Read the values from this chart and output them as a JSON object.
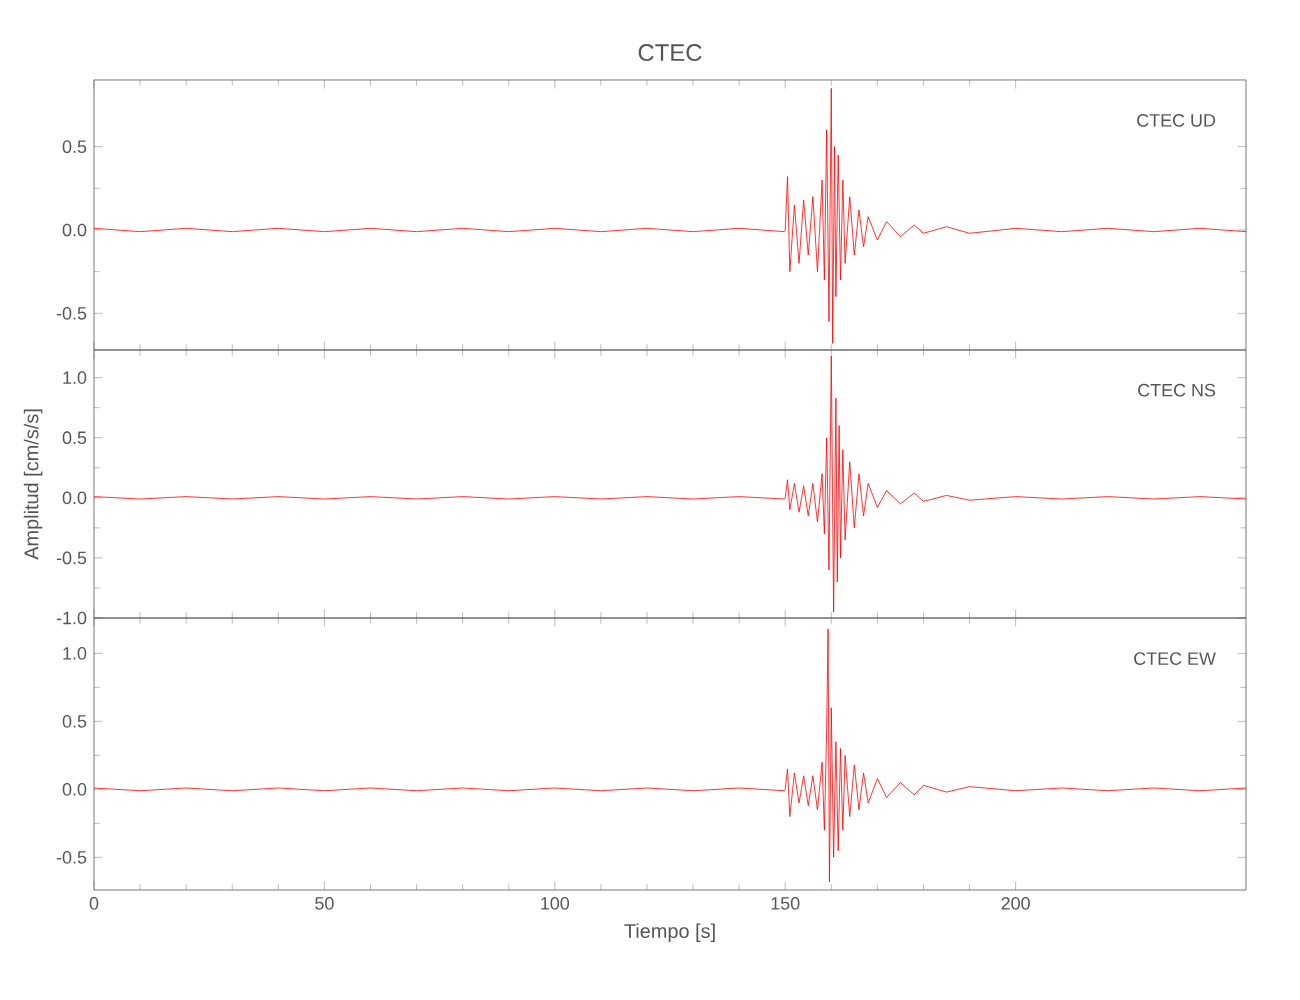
{
  "chart_data": [
    {
      "type": "line",
      "title": "CTEC",
      "annotations": [
        "CTEC   UD"
      ],
      "xlim": [
        0,
        250
      ],
      "xticks": [
        0,
        50,
        100,
        150,
        200
      ],
      "ylim": [
        -0.72,
        0.9
      ],
      "yticks": [
        {
          "value": -0.5,
          "label": "-0.5"
        },
        {
          "value": 0,
          "label": "0.0"
        },
        {
          "value": 0.5,
          "label": "0.5"
        }
      ],
      "tick_labels": "y",
      "series": [
        {
          "color": "#ff0000",
          "x": [
            0,
            10,
            20,
            30,
            40,
            50,
            60,
            70,
            80,
            90,
            100,
            110,
            120,
            130,
            140,
            149.8,
            150,
            150.5,
            151,
            152,
            153,
            154,
            155,
            156,
            157,
            158,
            158.5,
            159,
            159.5,
            160,
            160.3,
            160.7,
            161,
            161.5,
            162,
            162.5,
            163,
            164,
            165,
            166,
            167,
            168,
            170,
            172,
            175,
            178,
            180,
            185,
            190,
            200,
            210,
            220,
            230,
            240,
            250
          ],
          "values": [
            0.01,
            -0.01,
            0.01,
            -0.01,
            0.01,
            -0.01,
            0.01,
            -0.01,
            0.01,
            -0.01,
            0.01,
            -0.01,
            0.01,
            -0.01,
            0.01,
            -0.01,
            0.0,
            0.32,
            -0.25,
            0.15,
            -0.2,
            0.18,
            -0.15,
            0.2,
            -0.25,
            0.3,
            -0.3,
            0.6,
            -0.55,
            0.85,
            -0.68,
            0.5,
            -0.4,
            0.45,
            -0.3,
            0.3,
            -0.2,
            0.2,
            -0.15,
            0.12,
            -0.1,
            0.08,
            -0.06,
            0.05,
            -0.04,
            0.03,
            -0.02,
            0.02,
            -0.02,
            0.01,
            -0.01,
            0.01,
            -0.01,
            0.01,
            -0.01
          ]
        }
      ]
    },
    {
      "type": "line",
      "ylabel": "Amplitud [cm/s/s]",
      "annotations": [
        "CTEC   NS"
      ],
      "xlim": [
        0,
        250
      ],
      "xticks": [
        0,
        50,
        100,
        150,
        200
      ],
      "ylim": [
        -1.0,
        1.23
      ],
      "yticks": [
        {
          "value": -1,
          "label": "-1.0"
        },
        {
          "value": -0.5,
          "label": "-0.5"
        },
        {
          "value": 0,
          "label": "0.0"
        },
        {
          "value": 0.5,
          "label": "0.5"
        },
        {
          "value": 1,
          "label": "1.0"
        }
      ],
      "tick_labels": "y",
      "series": [
        {
          "color": "#ff0000",
          "x": [
            0,
            10,
            20,
            30,
            40,
            50,
            60,
            70,
            80,
            90,
            100,
            110,
            120,
            130,
            140,
            149.8,
            150,
            150.5,
            151,
            152,
            153,
            154,
            155,
            156,
            157,
            158,
            158.5,
            159,
            159.5,
            160,
            160.5,
            161,
            161.3,
            161.7,
            162,
            162.5,
            163,
            164,
            165,
            166,
            167,
            168,
            170,
            172,
            175,
            178,
            180,
            185,
            190,
            200,
            210,
            220,
            230,
            240,
            250
          ],
          "values": [
            0.01,
            -0.01,
            0.01,
            -0.01,
            0.01,
            -0.01,
            0.01,
            -0.01,
            0.01,
            -0.01,
            0.01,
            -0.01,
            0.01,
            -0.01,
            0.01,
            -0.01,
            0.0,
            0.15,
            -0.1,
            0.12,
            -0.12,
            0.1,
            -0.15,
            0.12,
            -0.2,
            0.2,
            -0.3,
            0.5,
            -0.6,
            1.18,
            -0.95,
            0.83,
            -0.7,
            0.6,
            -0.5,
            0.4,
            -0.35,
            0.3,
            -0.25,
            0.2,
            -0.15,
            0.12,
            -0.08,
            0.06,
            -0.05,
            0.04,
            -0.03,
            0.02,
            -0.02,
            0.01,
            -0.01,
            0.01,
            -0.01,
            0.01,
            -0.01
          ]
        }
      ]
    },
    {
      "type": "line",
      "xlabel": "Tiempo [s]",
      "annotations": [
        "CTEC   EW"
      ],
      "xlim": [
        0,
        250
      ],
      "xticks": [
        0,
        50,
        100,
        150,
        200
      ],
      "ylim": [
        -0.74,
        1.26
      ],
      "yticks": [
        {
          "value": -0.5,
          "label": "-0.5"
        },
        {
          "value": 0,
          "label": "0.0"
        },
        {
          "value": 0.5,
          "label": "0.5"
        },
        {
          "value": 1,
          "label": "1.0"
        }
      ],
      "series": [
        {
          "color": "#ff0000",
          "x": [
            0,
            10,
            20,
            30,
            40,
            50,
            60,
            70,
            80,
            90,
            100,
            110,
            120,
            130,
            140,
            149.8,
            150,
            150.5,
            151,
            152,
            153,
            154,
            155,
            156,
            157,
            158,
            158.5,
            159,
            159.3,
            159.6,
            160,
            160.5,
            161,
            161.5,
            162,
            162.5,
            163,
            164,
            165,
            166,
            167,
            168,
            170,
            172,
            175,
            178,
            180,
            185,
            190,
            200,
            210,
            220,
            230,
            240,
            250
          ],
          "values": [
            0.01,
            -0.01,
            0.01,
            -0.01,
            0.01,
            -0.01,
            0.01,
            -0.01,
            0.01,
            -0.01,
            0.01,
            -0.01,
            0.01,
            -0.01,
            0.01,
            -0.01,
            0.0,
            0.15,
            -0.2,
            0.12,
            -0.1,
            0.1,
            -0.12,
            0.1,
            -0.15,
            0.2,
            -0.3,
            0.45,
            1.18,
            -0.68,
            0.6,
            -0.5,
            0.35,
            -0.45,
            0.3,
            -0.3,
            0.25,
            -0.2,
            0.18,
            -0.15,
            0.12,
            -0.1,
            0.08,
            -0.06,
            0.05,
            -0.04,
            0.03,
            -0.02,
            0.02,
            -0.01,
            0.01,
            -0.01,
            0.01,
            -0.01,
            0.01
          ]
        }
      ]
    }
  ]
}
